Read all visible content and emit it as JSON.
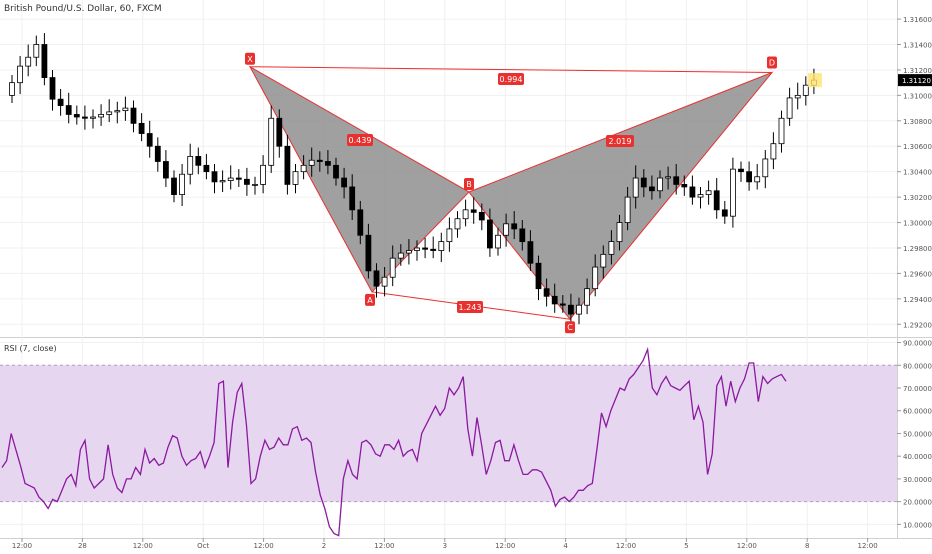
{
  "header": {
    "title": "British Pound/U.S. Dollar, 60, FXCM",
    "rsi_title": "RSI (7, close)"
  },
  "colors": {
    "candle": "#000000",
    "pattern_fill": "#8f8f8f",
    "pattern_line": "#e8302f",
    "rsi_line": "#8b1aa0",
    "rsi_band": "#e6d6f0",
    "price_badge": "#000000",
    "current_bar": "#ffe36e",
    "grid": "#f0f0f0",
    "axis_text": "#555555"
  },
  "chart_data": [
    {
      "type": "candlestick",
      "title": "British Pound/U.S. Dollar, 60, FXCM",
      "ylim": [
        1.291,
        1.3175
      ],
      "y_ticks": [
        "1.31600",
        "1.31400",
        "1.31200",
        "1.31000",
        "1.30800",
        "1.30600",
        "1.30400",
        "1.30200",
        "1.30000",
        "1.29800",
        "1.29600",
        "1.29400",
        "1.29200"
      ],
      "last_price": "1.31120",
      "x_ticks": [
        "12:00",
        "28",
        "12:00",
        "Oct",
        "12:00",
        "2",
        "12:00",
        "3",
        "12:00",
        "4",
        "12:00",
        "5",
        "12:00",
        "8",
        "12:00"
      ],
      "close": [
        1.311,
        1.3123,
        1.313,
        1.314,
        1.3114,
        1.3097,
        1.3092,
        1.3085,
        1.3083,
        1.3082,
        1.3083,
        1.3085,
        1.3087,
        1.3088,
        1.309,
        1.3078,
        1.307,
        1.306,
        1.3048,
        1.3035,
        1.3022,
        1.3038,
        1.3052,
        1.3045,
        1.304,
        1.3032,
        1.3033,
        1.3035,
        1.3034,
        1.303,
        1.303,
        1.3045,
        1.3082,
        1.306,
        1.303,
        1.304,
        1.3045,
        1.3049,
        1.3048,
        1.3045,
        1.3035,
        1.3028,
        1.301,
        1.299,
        1.2962,
        1.295,
        1.2957,
        1.2972,
        1.2976,
        1.2978,
        1.298,
        1.2979,
        1.2978,
        1.2985,
        1.2995,
        1.3003,
        1.301,
        1.3008,
        1.3002,
        1.298,
        1.299,
        1.2999,
        1.2995,
        1.2985,
        1.2968,
        1.2948,
        1.2942,
        1.2936,
        1.2935,
        1.2928,
        1.2935,
        1.2948,
        1.2965,
        1.2975,
        1.2985,
        1.3,
        1.302,
        1.3035,
        1.3028,
        1.3025,
        1.3035,
        1.3036,
        1.303,
        1.3028,
        1.302,
        1.3022,
        1.3025,
        1.301,
        1.3005,
        1.3042,
        1.304,
        1.3032,
        1.3036,
        1.305,
        1.3062,
        1.3082,
        1.3098,
        1.31,
        1.3108,
        1.3112
      ],
      "open": [
        1.31,
        1.311,
        1.3123,
        1.313,
        1.314,
        1.3114,
        1.3097,
        1.3092,
        1.3085,
        1.3083,
        1.3082,
        1.3083,
        1.3085,
        1.3087,
        1.3088,
        1.309,
        1.3078,
        1.307,
        1.306,
        1.3048,
        1.3035,
        1.3022,
        1.3038,
        1.3052,
        1.3045,
        1.304,
        1.3032,
        1.3033,
        1.3035,
        1.3034,
        1.303,
        1.303,
        1.3045,
        1.3082,
        1.306,
        1.303,
        1.304,
        1.3045,
        1.3049,
        1.3048,
        1.3045,
        1.3035,
        1.3028,
        1.301,
        1.299,
        1.2962,
        1.295,
        1.2957,
        1.2972,
        1.2976,
        1.2978,
        1.298,
        1.2979,
        1.2978,
        1.2985,
        1.2995,
        1.3003,
        1.301,
        1.3008,
        1.3002,
        1.298,
        1.299,
        1.2999,
        1.2995,
        1.2985,
        1.2968,
        1.2948,
        1.2942,
        1.2936,
        1.2935,
        1.2928,
        1.2935,
        1.2948,
        1.2965,
        1.2975,
        1.2985,
        1.3,
        1.302,
        1.3035,
        1.3028,
        1.3025,
        1.3035,
        1.3036,
        1.303,
        1.3028,
        1.302,
        1.3022,
        1.3025,
        1.301,
        1.3005,
        1.3042,
        1.304,
        1.3032,
        1.3036,
        1.305,
        1.3062,
        1.3082,
        1.3098,
        1.31,
        1.3108
      ],
      "x_start": 2,
      "x_step": 8.1
    },
    {
      "type": "line",
      "title": "RSI (7, close)",
      "ylim": [
        4,
        92
      ],
      "y_ticks": [
        "90.0000",
        "80.0000",
        "70.0000",
        "60.0000",
        "50.0000",
        "40.0000",
        "30.0000",
        "20.0000",
        "10.0000"
      ],
      "band": [
        20,
        80
      ],
      "values": [
        35,
        38,
        50,
        43,
        36,
        28,
        27,
        26,
        22,
        20,
        17,
        21,
        20,
        25,
        30,
        32,
        27,
        43,
        47,
        30,
        26,
        28,
        30,
        45,
        32,
        26,
        24,
        30,
        30,
        35,
        32,
        43,
        37,
        39,
        36,
        37,
        44,
        49,
        48,
        40,
        36,
        38,
        39,
        42,
        35,
        40,
        46,
        72,
        73,
        35,
        55,
        68,
        72,
        54,
        28,
        30,
        40,
        47,
        43,
        44,
        48,
        45,
        45,
        52,
        53,
        47,
        48,
        46,
        33,
        23,
        17,
        9,
        6,
        5,
        30,
        38,
        32,
        30,
        46,
        47,
        45,
        41,
        40,
        45,
        45,
        43,
        47,
        40,
        42,
        43,
        38,
        50,
        54,
        58,
        62,
        58,
        61,
        70,
        67,
        70,
        75,
        52,
        40,
        57,
        45,
        32,
        38,
        46,
        47,
        38,
        38,
        45,
        38,
        32,
        32,
        34,
        34,
        33,
        29,
        25,
        18,
        21,
        22,
        20,
        22,
        25,
        25,
        27,
        28,
        43,
        59,
        53,
        60,
        65,
        70,
        69,
        74,
        76,
        79,
        82,
        87,
        70,
        67,
        72,
        75,
        71,
        70,
        69,
        71,
        73,
        56,
        62,
        55,
        32,
        41,
        71,
        75,
        62,
        73,
        64,
        70,
        74,
        81,
        81,
        64,
        75,
        72,
        74,
        75,
        76,
        73
      ]
    }
  ],
  "pattern": {
    "labels": {
      "X": "X",
      "A": "A",
      "B": "B",
      "C": "C",
      "D": "D"
    },
    "ratios": {
      "xa_b": "0.439",
      "xd": "0.994",
      "bc_d": "2.019",
      "ac": "1.243"
    },
    "points": {
      "X": [
        250,
        1.31225
      ],
      "A": [
        372,
        1.29455
      ],
      "B": [
        469,
        1.3024
      ],
      "C": [
        570,
        1.2924
      ],
      "D": [
        772,
        1.3118
      ]
    }
  }
}
